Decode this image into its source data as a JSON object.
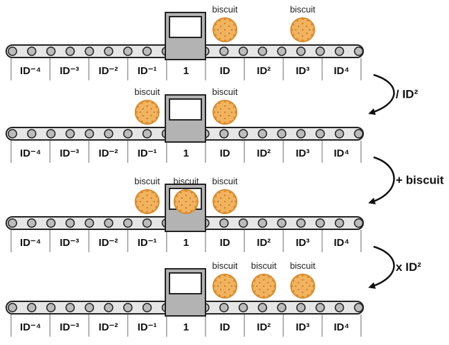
{
  "slots": [
    "ID⁻⁴",
    "ID⁻³",
    "ID⁻²",
    "ID⁻¹",
    "1",
    "ID",
    "ID²",
    "ID³",
    "ID⁴"
  ],
  "biscuit_label": "biscuit",
  "rows": [
    {
      "biscuits": [
        5,
        7
      ]
    },
    {
      "biscuits": [
        3,
        5
      ]
    },
    {
      "biscuits": [
        3,
        4,
        5
      ]
    },
    {
      "biscuits": [
        5,
        6,
        7
      ]
    }
  ],
  "operations": [
    "/ ID²",
    "+ biscuit",
    "x ID²"
  ],
  "colors": {
    "belt_fill": "#e6e6e6",
    "roller_fill": "#bcbcbc",
    "machine_fill": "#b3b3b3",
    "biscuit_fill": "#f2b35f",
    "biscuit_rim": "#d98c2e",
    "biscuit_dot": "#c0792a",
    "line": "#222222"
  }
}
